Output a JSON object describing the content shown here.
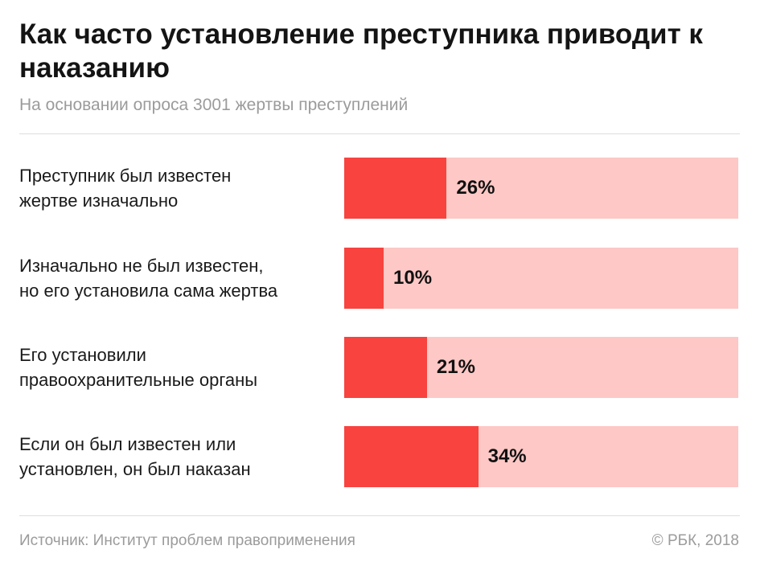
{
  "colors": {
    "bar_fill": "#f8433f",
    "bar_track": "#fdc8c5",
    "title": "#141414",
    "muted": "#9b9b9b"
  },
  "chart_data": {
    "type": "bar",
    "orientation": "horizontal",
    "title": "Как часто установление преступника приводит к наказанию",
    "subtitle": "На основании опроса 3001 жертвы преступлений",
    "categories": [
      "Преступник был известен\nжертве изначально",
      "Изначально не был известен,\nно его установила сама жертва",
      "Его установили\nправоохранительные органы",
      "Если он был известен или\nустановлен, он был наказан"
    ],
    "values": [
      26,
      10,
      21,
      34
    ],
    "value_labels": [
      "26%",
      "10%",
      "21%",
      "34%"
    ],
    "xlim": [
      0,
      100
    ],
    "unit": "%",
    "grid": false,
    "legend": "none"
  },
  "footer": {
    "source": "Источник: Институт проблем правоприменения",
    "copyright": "© РБК, 2018"
  }
}
